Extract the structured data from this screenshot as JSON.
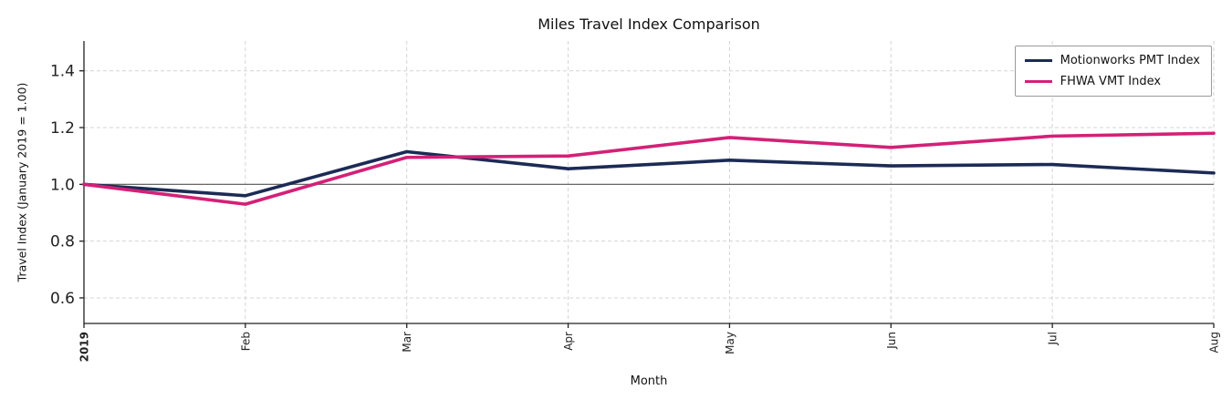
{
  "chart_data": {
    "type": "line",
    "title": "Miles Travel Index Comparison",
    "xlabel": "Month",
    "ylabel": "Travel Index (January 2019 = 1.00)",
    "x_ticks": [
      {
        "label": "2019",
        "bold": true
      },
      {
        "label": "Feb",
        "bold": false
      },
      {
        "label": "Mar",
        "bold": false
      },
      {
        "label": "Apr",
        "bold": false
      },
      {
        "label": "May",
        "bold": false
      },
      {
        "label": "Jun",
        "bold": false
      },
      {
        "label": "Jul",
        "bold": false
      },
      {
        "label": "Aug",
        "bold": false
      }
    ],
    "y_ticks": [
      0.6,
      0.8,
      1.0,
      1.2,
      1.4
    ],
    "ylim": [
      0.51,
      1.505
    ],
    "reference_line": 1.0,
    "grid": true,
    "legend_position": "upper right",
    "series": [
      {
        "name": "Motionworks PMT Index",
        "color": "#1c2b55",
        "values": [
          1.0,
          0.96,
          1.115,
          1.055,
          1.085,
          1.065,
          1.07,
          1.04
        ]
      },
      {
        "name": "FHWA VMT Index",
        "color": "#d42077",
        "values": [
          1.0,
          0.93,
          1.095,
          1.1,
          1.165,
          1.13,
          1.17,
          1.18
        ]
      }
    ]
  },
  "colors": {
    "grid": "#d4d4d4",
    "spine": "#222222",
    "reference": "#555555",
    "tick_text": "#222222"
  }
}
